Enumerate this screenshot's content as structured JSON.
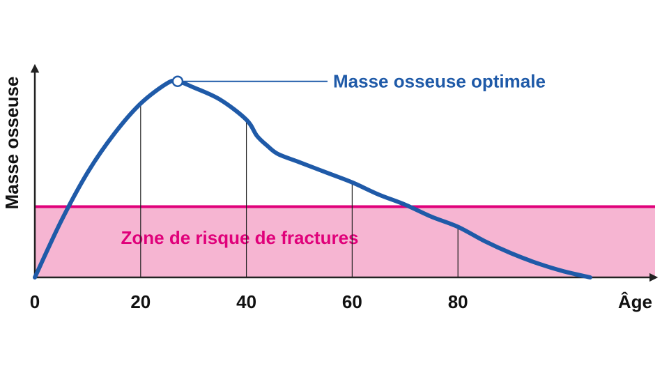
{
  "chart_data": {
    "type": "line",
    "xlabel": "Âge",
    "ylabel": "Masse osseuse",
    "xlim": [
      0,
      117
    ],
    "ylim": [
      0,
      100
    ],
    "xticks": [
      0,
      20,
      40,
      60,
      80
    ],
    "xtick_labels": [
      "0",
      "20",
      "40",
      "60",
      "80"
    ],
    "series": [
      {
        "x": [
          0,
          5,
          10,
          15,
          20,
          25,
          27,
          30,
          35,
          40,
          42,
          44,
          46,
          50,
          55,
          60,
          65,
          70,
          75,
          80,
          85,
          90,
          95,
          100,
          105
        ],
        "y": [
          0,
          28,
          52,
          71,
          86,
          96,
          97,
          94,
          88,
          78,
          70,
          65,
          61,
          57,
          52,
          47,
          41,
          36,
          30,
          25,
          18,
          12,
          7,
          3,
          0
        ]
      }
    ],
    "risk_zone": {
      "label": "Zone de risque de fractures",
      "threshold": 35
    },
    "optimum": {
      "label": "Masse osseuse optimale",
      "x": 27,
      "y": 97
    },
    "colors": {
      "curve": "#1f5aa8",
      "zone_fill": "#f6b5d2",
      "zone_line": "#e0007a",
      "zone_label": "#e0007a",
      "annotation": "#1f5aa8",
      "axis": "#222222"
    }
  }
}
